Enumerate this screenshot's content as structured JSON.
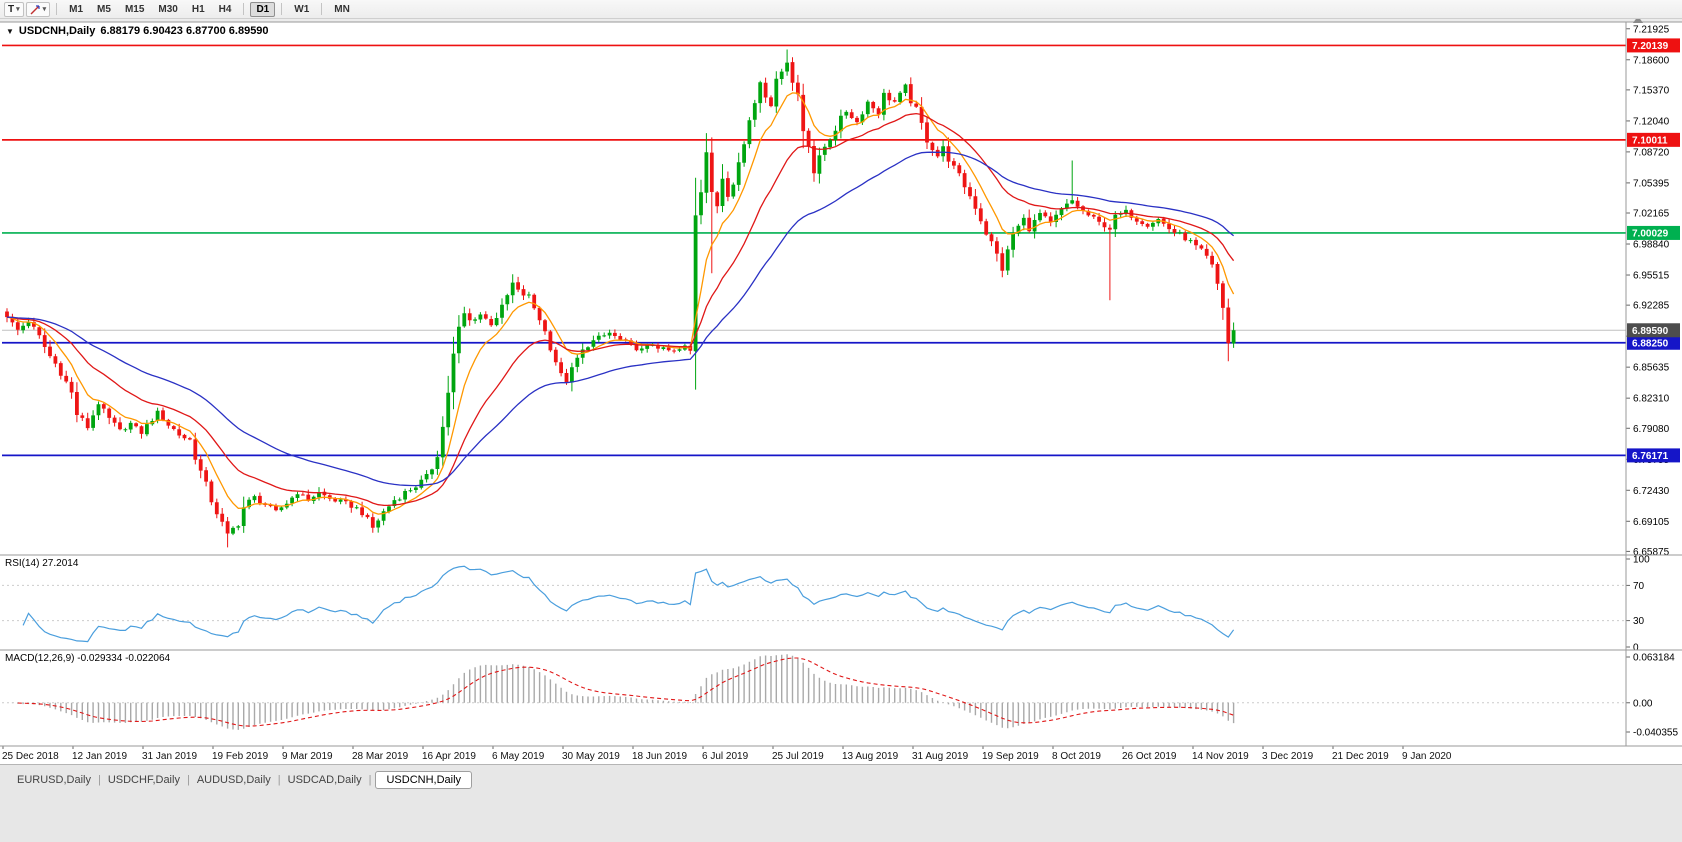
{
  "toolbar": {
    "text_tool_label": "T",
    "dropdown_glyph": "▾",
    "timeframes": [
      "M1",
      "M5",
      "M15",
      "M30",
      "H1",
      "H4",
      "D1",
      "W1",
      "MN"
    ],
    "active_timeframe": "D1"
  },
  "chart_header": {
    "collapse_icon": "▼",
    "symbol_period": "USDCNH,Daily",
    "ohlc": "6.88179 6.90423 6.87700 6.89590"
  },
  "chart_data": {
    "type": "candlestick",
    "symbol": "USDCNH",
    "period": "Daily",
    "up_color": "#00a510",
    "down_color": "#ee1515",
    "background": "#ffffff",
    "y_axis": {
      "ticks": [
        "7.21925",
        "7.18600",
        "7.15370",
        "7.12040",
        "7.08720",
        "7.05395",
        "7.02165",
        "6.98840",
        "6.95515",
        "6.92285",
        "6.88960",
        "6.85635",
        "6.82310",
        "6.79080",
        "6.75755",
        "6.72430",
        "6.69105",
        "6.65875"
      ]
    },
    "x_labels": [
      "25 Dec 2018",
      "12 Jan 2019",
      "31 Jan 2019",
      "19 Feb 2019",
      "9 Mar 2019",
      "28 Mar 2019",
      "16 Apr 2019",
      "6 May 2019",
      "30 May 2019",
      "18 Jun 2019",
      "6 Jul 2019",
      "25 Jul 2019",
      "13 Aug 2019",
      "31 Aug 2019",
      "19 Sep 2019",
      "8 Oct 2019",
      "26 Oct 2019",
      "14 Nov 2019",
      "3 Dec 2019",
      "21 Dec 2019",
      "9 Jan 2020"
    ],
    "horizontal_lines": [
      {
        "price": 7.20139,
        "label": "7.20139",
        "color": "#ee1111",
        "name": "resistance-line-7-20139"
      },
      {
        "price": 7.10011,
        "label": "7.10011",
        "color": "#ee1111",
        "name": "resistance-line-7-10011"
      },
      {
        "price": 7.00029,
        "label": "7.00029",
        "color": "#00b050",
        "name": "level-line-7-00029"
      },
      {
        "price": 6.8825,
        "label": "6.88250",
        "color": "#1515c8",
        "name": "support-line-6-88250"
      },
      {
        "price": 6.76171,
        "label": "6.76171",
        "color": "#1515c8",
        "name": "support-line-6-76171"
      }
    ],
    "current_price": {
      "price": 6.8959,
      "label": "6.89590",
      "tag_color": "#4d4d4d",
      "line_color": "#c0c0c0"
    },
    "moving_averages": [
      {
        "name": "ma-fast-orange",
        "period": 8,
        "color": "#ff9800"
      },
      {
        "name": "ma-mid-red",
        "period": 21,
        "color": "#e01818"
      },
      {
        "name": "ma-slow-blue",
        "period": 45,
        "color": "#2a31c4"
      }
    ],
    "close_anchors": [
      [
        0,
        6.91
      ],
      [
        2,
        6.896
      ],
      [
        4,
        6.906
      ],
      [
        6,
        6.888
      ],
      [
        8,
        6.868
      ],
      [
        10,
        6.852
      ],
      [
        12,
        6.828
      ],
      [
        13,
        6.806
      ],
      [
        15,
        6.792
      ],
      [
        17,
        6.818
      ],
      [
        19,
        6.8
      ],
      [
        21,
        6.788
      ],
      [
        23,
        6.796
      ],
      [
        25,
        6.786
      ],
      [
        27,
        6.801
      ],
      [
        28,
        6.808
      ],
      [
        30,
        6.795
      ],
      [
        32,
        6.784
      ],
      [
        34,
        6.778
      ],
      [
        36,
        6.744
      ],
      [
        38,
        6.714
      ],
      [
        40,
        6.688
      ],
      [
        41,
        6.676
      ],
      [
        43,
        6.69
      ],
      [
        44,
        6.706
      ],
      [
        46,
        6.717
      ],
      [
        48,
        6.709
      ],
      [
        50,
        6.701
      ],
      [
        52,
        6.711
      ],
      [
        54,
        6.722
      ],
      [
        56,
        6.714
      ],
      [
        58,
        6.722
      ],
      [
        60,
        6.715
      ],
      [
        62,
        6.712
      ],
      [
        64,
        6.708
      ],
      [
        66,
        6.701
      ],
      [
        68,
        6.684
      ],
      [
        70,
        6.701
      ],
      [
        72,
        6.714
      ],
      [
        74,
        6.722
      ],
      [
        76,
        6.729
      ],
      [
        78,
        6.737
      ],
      [
        79,
        6.749
      ],
      [
        80,
        6.764
      ],
      [
        81,
        6.792
      ],
      [
        82,
        6.83
      ],
      [
        83,
        6.869
      ],
      [
        84,
        6.897
      ],
      [
        85,
        6.913
      ],
      [
        86,
        6.906
      ],
      [
        88,
        6.913
      ],
      [
        90,
        6.903
      ],
      [
        92,
        6.919
      ],
      [
        94,
        6.946
      ],
      [
        95,
        6.938
      ],
      [
        97,
        6.931
      ],
      [
        99,
        6.909
      ],
      [
        101,
        6.879
      ],
      [
        103,
        6.847
      ],
      [
        104,
        6.841
      ],
      [
        106,
        6.865
      ],
      [
        108,
        6.881
      ],
      [
        110,
        6.887
      ],
      [
        112,
        6.893
      ],
      [
        114,
        6.885
      ],
      [
        116,
        6.879
      ],
      [
        118,
        6.875
      ],
      [
        120,
        6.881
      ],
      [
        122,
        6.875
      ],
      [
        124,
        6.873
      ],
      [
        126,
        6.877
      ],
      [
        127,
        6.873
      ],
      [
        128,
        7.021
      ],
      [
        129,
        7.047
      ],
      [
        130,
        7.089
      ],
      [
        131,
        7.045
      ],
      [
        132,
        7.025
      ],
      [
        133,
        7.059
      ],
      [
        134,
        7.041
      ],
      [
        135,
        7.057
      ],
      [
        136,
        7.081
      ],
      [
        137,
        7.095
      ],
      [
        138,
        7.121
      ],
      [
        139,
        7.141
      ],
      [
        140,
        7.163
      ],
      [
        141,
        7.149
      ],
      [
        142,
        7.139
      ],
      [
        143,
        7.161
      ],
      [
        144,
        7.177
      ],
      [
        145,
        7.185
      ],
      [
        146,
        7.161
      ],
      [
        147,
        7.149
      ],
      [
        148,
        7.111
      ],
      [
        149,
        7.097
      ],
      [
        150,
        7.065
      ],
      [
        151,
        7.081
      ],
      [
        152,
        7.093
      ],
      [
        153,
        7.103
      ],
      [
        154,
        7.113
      ],
      [
        156,
        7.131
      ],
      [
        158,
        7.119
      ],
      [
        160,
        7.141
      ],
      [
        162,
        7.129
      ],
      [
        163,
        7.149
      ],
      [
        165,
        7.141
      ],
      [
        167,
        7.157
      ],
      [
        168,
        7.143
      ],
      [
        169,
        7.131
      ],
      [
        171,
        7.101
      ],
      [
        173,
        7.083
      ],
      [
        174,
        7.091
      ],
      [
        176,
        7.069
      ],
      [
        178,
        7.051
      ],
      [
        180,
        7.029
      ],
      [
        182,
        7.001
      ],
      [
        184,
        6.977
      ],
      [
        185,
        6.961
      ],
      [
        187,
        6.999
      ],
      [
        189,
        7.015
      ],
      [
        190,
        7.005
      ],
      [
        192,
        7.021
      ],
      [
        194,
        7.011
      ],
      [
        196,
        7.025
      ],
      [
        198,
        7.035
      ],
      [
        199,
        7.029
      ],
      [
        200,
        7.023
      ],
      [
        202,
        7.015
      ],
      [
        203,
        7.011
      ],
      [
        205,
        7.005
      ],
      [
        206,
        7.017
      ],
      [
        208,
        7.023
      ],
      [
        210,
        7.015
      ],
      [
        212,
        7.009
      ],
      [
        214,
        7.015
      ],
      [
        216,
        7.005
      ],
      [
        217,
        7.001
      ],
      [
        219,
        6.995
      ],
      [
        221,
        6.985
      ],
      [
        223,
        6.973
      ],
      [
        224,
        6.963
      ],
      [
        225,
        6.945
      ],
      [
        226,
        6.921
      ],
      [
        227,
        6.882
      ],
      [
        228,
        6.8959
      ]
    ],
    "wick_overrides": {
      "41": {
        "l": 6.663
      },
      "94": {
        "h": 6.956
      },
      "131": {
        "l": 6.957
      },
      "145": {
        "h": 7.197
      },
      "198": {
        "h": 7.078
      },
      "205": {
        "l": 6.928
      },
      "227": {
        "l": 6.8627
      }
    },
    "last_ohlc": [
      6.88179,
      6.90423,
      6.877,
      6.8959
    ],
    "indicators": [
      {
        "name": "RSI",
        "label": "RSI(14) 27.2014",
        "period": 14,
        "value": 27.2014,
        "color": "#4a9edd",
        "axis_labels": [
          "100",
          "70",
          "30",
          "0"
        ],
        "levels": [
          70,
          30
        ]
      },
      {
        "name": "MACD",
        "label": "MACD(12,26,9) -0.029334 -0.022064",
        "fast": 12,
        "slow": 26,
        "signal_period": 9,
        "macd_value": -0.029334,
        "signal_value": -0.022064,
        "histogram_color": "#a9a9a9",
        "signal_color": "#e01818",
        "axis_labels": [
          "0.063184",
          "0.00",
          "-0.040355"
        ],
        "axis_values": [
          0.063184,
          0,
          -0.040355
        ]
      }
    ]
  },
  "tab_bar": {
    "separator": "|",
    "items": [
      "EURUSD,Daily",
      "USDCHF,Daily",
      "AUDUSD,Daily",
      "USDCAD,Daily",
      "USDCNH,Daily"
    ],
    "active": "USDCNH,Daily"
  }
}
